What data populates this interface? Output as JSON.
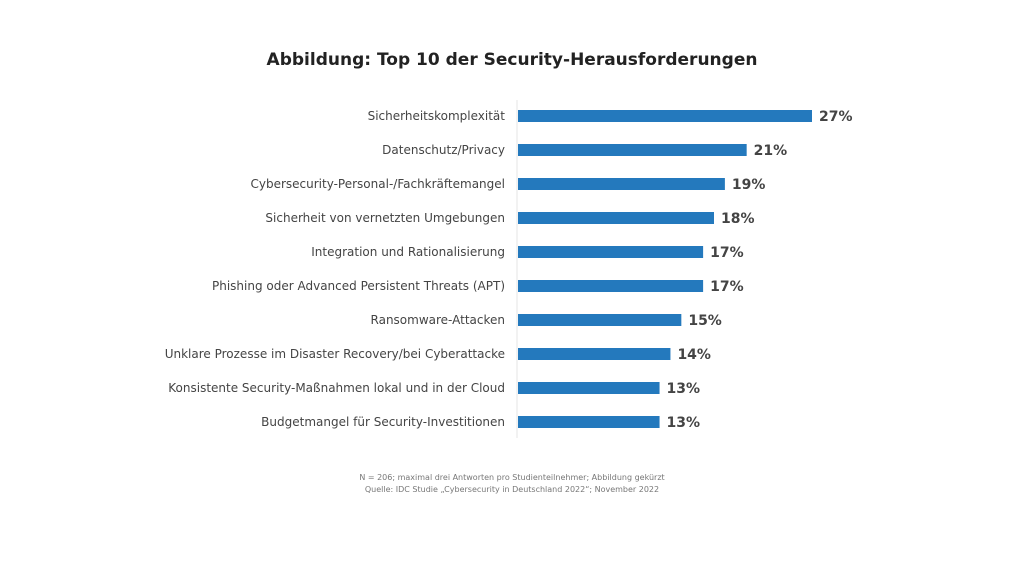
{
  "chart_data": {
    "type": "bar",
    "orientation": "horizontal",
    "title": "Abbildung: Top 10 der Security-Herausforderungen",
    "categories": [
      "Sicherheitskomplexität",
      "Datenschutz/Privacy",
      "Cybersecurity-Personal-/Fachkräftemangel",
      "Sicherheit von vernetzten Umgebungen",
      "Integration und Rationalisierung",
      "Phishing oder Advanced Persistent Threats (APT)",
      "Ransomware-Attacken",
      "Unklare Prozesse im Disaster Recovery/bei Cyberattacke",
      "Konsistente Security-Maßnahmen lokal und in der Cloud",
      "Budgetmangel für Security-Investitionen"
    ],
    "values": [
      27,
      21,
      19,
      18,
      17,
      17,
      15,
      14,
      13,
      13
    ],
    "value_labels": [
      "27%",
      "21%",
      "19%",
      "18%",
      "17%",
      "17%",
      "15%",
      "14%",
      "13%",
      "13%"
    ],
    "unit": "%",
    "xlim": [
      0,
      27
    ],
    "grid": false,
    "bar_color": "#2479BD",
    "footnote": [
      "N = 206; maximal drei Antworten pro Studienteilnehmer; Abbildung gekürzt",
      "Quelle: IDC Studie „Cybersecurity in Deutschland 2022“; November 2022"
    ]
  }
}
